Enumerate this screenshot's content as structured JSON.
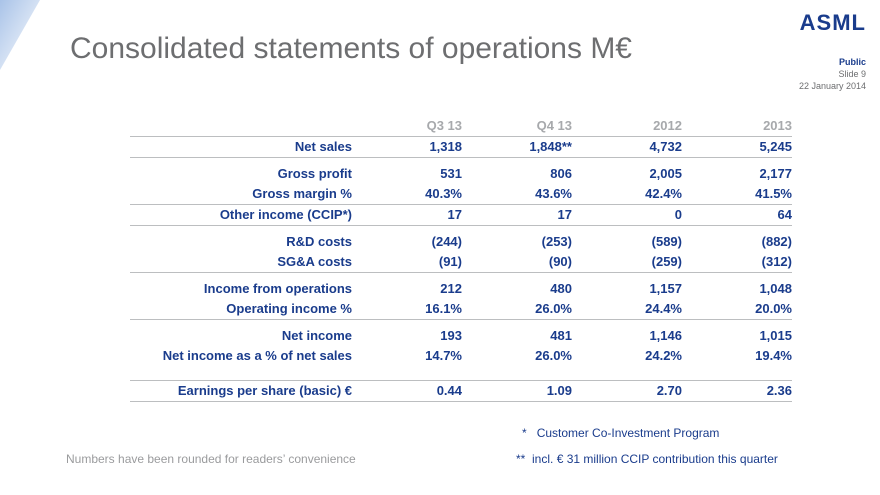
{
  "header": {
    "title": "Consolidated statements of operations M€",
    "logo": "ASML",
    "classification": "Public",
    "slide": "Slide 9",
    "date": "22 January 2014"
  },
  "table": {
    "columns": [
      "Q3 13",
      "Q4 13",
      "2012",
      "2013"
    ],
    "rows": [
      {
        "label": "Net sales",
        "values": [
          "1,318",
          "1,848**",
          "4,732",
          "5,245"
        ]
      },
      {
        "label": "Gross profit",
        "values": [
          "531",
          "806",
          "2,005",
          "2,177"
        ]
      },
      {
        "label": "Gross margin %",
        "values": [
          "40.3%",
          "43.6%",
          "42.4%",
          "41.5%"
        ]
      },
      {
        "label": "Other income (CCIP*)",
        "values": [
          "17",
          "17",
          "0",
          "64"
        ]
      },
      {
        "label": "R&D costs",
        "values": [
          "(244)",
          "(253)",
          "(589)",
          "(882)"
        ]
      },
      {
        "label": "SG&A costs",
        "values": [
          "(91)",
          "(90)",
          "(259)",
          "(312)"
        ]
      },
      {
        "label": "Income from operations",
        "values": [
          "212",
          "480",
          "1,157",
          "1,048"
        ]
      },
      {
        "label": "Operating income %",
        "values": [
          "16.1%",
          "26.0%",
          "24.4%",
          "20.0%"
        ]
      },
      {
        "label": "Net income",
        "values": [
          "193",
          "481",
          "1,146",
          "1,015"
        ]
      },
      {
        "label": "Net income as a % of net sales",
        "values": [
          "14.7%",
          "26.0%",
          "24.2%",
          "19.4%"
        ]
      },
      {
        "label": "Earnings per share (basic) €",
        "values": [
          "0.44",
          "1.09",
          "2.70",
          "2.36"
        ]
      }
    ]
  },
  "footnotes": {
    "ccip_marker": "*",
    "ccip_text": "Customer Co-Investment Program",
    "q4_marker": "**",
    "q4_text": "incl. € 31 million CCIP contribution this quarter",
    "rounding": "Numbers have been rounded for readers’ convenience"
  }
}
